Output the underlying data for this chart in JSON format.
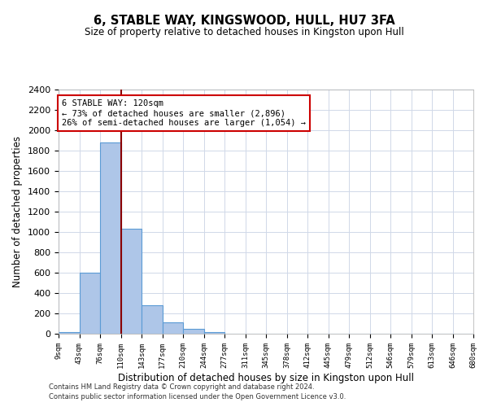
{
  "title": "6, STABLE WAY, KINGSWOOD, HULL, HU7 3FA",
  "subtitle": "Size of property relative to detached houses in Kingston upon Hull",
  "xlabel": "Distribution of detached houses by size in Kingston upon Hull",
  "ylabel": "Number of detached properties",
  "bin_labels": [
    "9sqm",
    "43sqm",
    "76sqm",
    "110sqm",
    "143sqm",
    "177sqm",
    "210sqm",
    "244sqm",
    "277sqm",
    "311sqm",
    "345sqm",
    "378sqm",
    "412sqm",
    "445sqm",
    "479sqm",
    "512sqm",
    "546sqm",
    "579sqm",
    "613sqm",
    "646sqm",
    "680sqm"
  ],
  "bar_values": [
    15,
    600,
    1880,
    1030,
    280,
    115,
    50,
    20,
    0,
    0,
    0,
    0,
    0,
    0,
    0,
    0,
    0,
    0,
    0,
    0
  ],
  "bar_color": "#aec6e8",
  "bar_edge_color": "#5b9bd5",
  "vline_x": 3,
  "vline_color": "#8b0000",
  "annotation_text": "6 STABLE WAY: 120sqm\n← 73% of detached houses are smaller (2,896)\n26% of semi-detached houses are larger (1,054) →",
  "annotation_box_color": "#ffffff",
  "annotation_box_edge_color": "#cc0000",
  "ylim": [
    0,
    2400
  ],
  "yticks": [
    0,
    200,
    400,
    600,
    800,
    1000,
    1200,
    1400,
    1600,
    1800,
    2000,
    2200,
    2400
  ],
  "footer_line1": "Contains HM Land Registry data © Crown copyright and database right 2024.",
  "footer_line2": "Contains public sector information licensed under the Open Government Licence v3.0.",
  "bg_color": "#ffffff",
  "grid_color": "#d0d8e8"
}
